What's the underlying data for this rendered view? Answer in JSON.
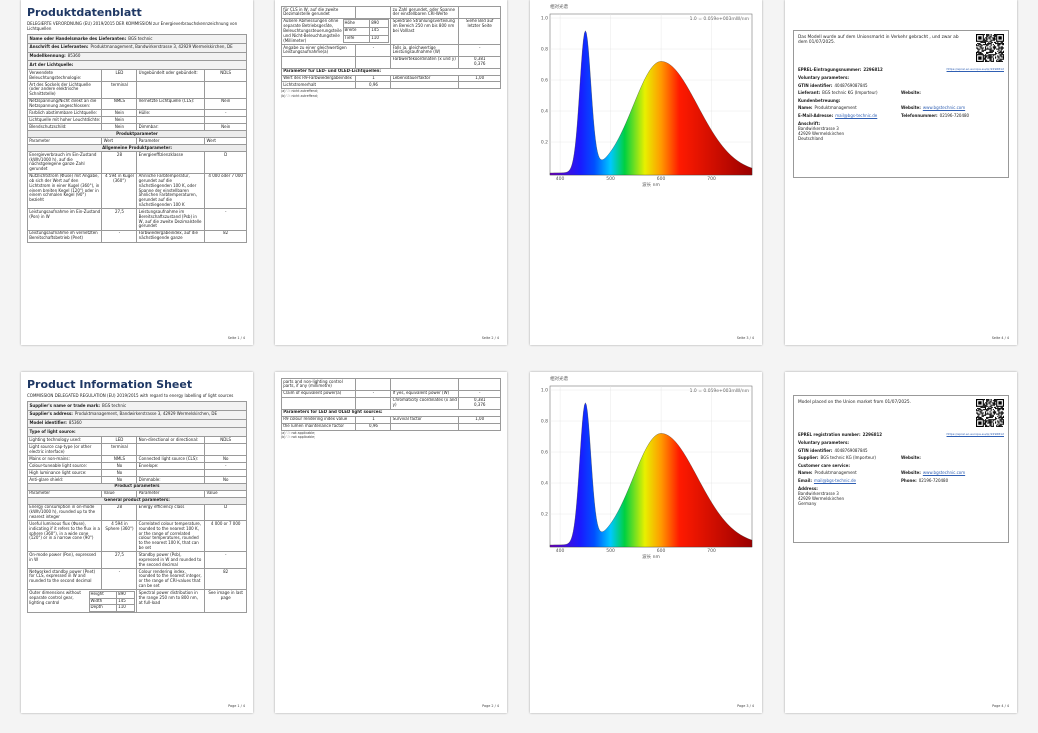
{
  "pages": [
    {
      "kind": "sheet",
      "title": "Produktdatenblatt",
      "subtitle": "DELEGIERTE VERORDNUNG (EU) 2019/2015 DER KOMMISSION zur Energieverbrauchskennzeichnung von Lichtquellen",
      "blocks": [
        {
          "label": "Name oder Handelsmarke des Lieferanten:",
          "value": "BGS technic"
        },
        {
          "label": "Anschrift des Lieferanten:",
          "value": "Produktmanagement, Bandwirkerstrasse 3, 42929 Wermelskirchen, DE"
        },
        {
          "label": "Modellkennung:",
          "value": "85360"
        },
        {
          "label": "Art der Lichtquelle:"
        },
        {
          "cells": [
            "Verwendete Beleuchtungstechnologie:",
            "LED",
            "Ungebündelt oder gebündelt:",
            "NDLS"
          ]
        },
        {
          "cells": [
            "Art des Sockels der Lichtquelle (oder andere elektrische Schnittstelle)",
            "terminal",
            null,
            null
          ]
        },
        {
          "cells": [
            "Netzspannung/Nicht direkt an die Netzspannung angeschlossen:",
            "NMLS",
            "Vernetzte Lichtquelle (CLS):",
            "Nein"
          ]
        },
        {
          "cells": [
            "Farblich abstimmbare Lichtquelle:",
            "Nein",
            "Hülle:",
            "-"
          ]
        },
        {
          "cells": [
            "Lichtquelle mit hoher Leuchtdichte:",
            "Nein",
            null,
            null
          ]
        },
        {
          "cells": [
            "Blendschutzschild:",
            "Nein",
            "Dimmbar:",
            "Nein"
          ]
        },
        {
          "section": "Produktparameter"
        },
        {
          "header": [
            "Parameter",
            "Wert",
            "Parameter",
            "Wert"
          ]
        },
        {
          "section": "Allgemeine Produktparameter:"
        },
        {
          "cells": [
            "Energieverbrauch im Ein-Zustand (kWh/1000 h), auf die nächstgelegene ganze Zahl gerundet",
            "28",
            "Energieeffizienzklasse",
            "D"
          ]
        },
        {
          "cells": [
            "Nutzlichtstrom (Φuse) mit Angabe, ob sich der Wert auf den Lichtstrom in einer Kugel (360°), in einem breiten Kegel (120°) oder in einem schmalen Kegel (90°) bezieht",
            "4 594 in Kugel (360°)",
            "Ähnliche Farbtemperatur, gerundet auf die nächstliegenden 100 K, oder Spanne der einstellbaren ähnlichen Farbtemperaturen, gerundet auf die nächstliegenden 100 K",
            "4 000 oder 7 000"
          ]
        },
        {
          "cells": [
            "Leistungsaufnahme im Ein-Zustand (Pon) in W",
            "27,5",
            "Leistungsaufnahme im Bereitschaftszustand (Psb) in W, auf die zweite Dezimalstelle gerundet",
            "-"
          ]
        },
        {
          "cells": [
            "Leistungsaufnahme im vernetzten Bereitschaftsbetrieb (Pnet)",
            "-",
            "Farbwiedergabeindex, auf die nächstliegende ganze",
            "82"
          ]
        }
      ],
      "footer": "Seite 1 / 4"
    },
    {
      "kind": "sheet",
      "blocks": [
        {
          "cells": [
            "für CLS in W, auf die zweite Dezimalstelle gerundet",
            null,
            "zu Zahl gerundet, oder Spanne der einstellbaren CRI-Werte",
            null
          ]
        },
        {
          "label": "Äußere Abmessungen ohne separate Betriebsgeräte, Beleuchtungssteuerungsteile und Nicht-Beleuchtungsteile (Millimeter)",
          "dims": [
            {
              "name": "Höhe",
              "value": "890"
            },
            {
              "name": "Breite",
              "value": "145"
            },
            {
              "name": "Tiefe",
              "value": "110"
            }
          ],
          "cells": [
            "Spektrale Strahlungsverteilung im Bereich 250 nm bis 800 nm bei Volllast",
            "Siehe Bild auf letzter Seite"
          ]
        },
        {
          "cells": [
            "Angabe zu einer gleichwertigen Leistungsaufnahme(a)",
            "-",
            "Falls ja, gleichwertige Leistungsaufnahme (W)",
            "-"
          ]
        },
        {
          "cells": [
            null,
            null,
            "Farbwertekoordinaten (x und y)",
            "0,381\n0,376"
          ]
        },
        {
          "subsection": "Parameter für LED- und OLED-Lichtquellen:"
        },
        {
          "cells": [
            "Wert des R9-Farbwiedergabeindex",
            "1",
            "Lebensdauerfaktor",
            "1,00"
          ]
        },
        {
          "cells": [
            "Lichtstromerhalt",
            "0,96",
            null,
            null
          ]
        }
      ],
      "footnotes": [
        "(a) '-': nicht zutreffend;",
        "(b) '-': nicht zutreffend;"
      ],
      "footer": "Seite 2 / 4"
    },
    {
      "kind": "spectrum",
      "spectrum": {
        "caption": "相对光谱",
        "scale": "1.0 = 0.059e+003mW/nm",
        "yticks": [
          "1.0",
          "0.8",
          "0.6",
          "0.4",
          "0.2"
        ],
        "xticks": [
          "400",
          "500",
          "600",
          "700"
        ],
        "xlabel": "波长 nm"
      },
      "footer": "Seite 3 / 4"
    },
    {
      "kind": "info",
      "intro": "Das Modell wurde auf dem Unionsmarkt in Verkehr gebracht , und zwar ab dem 01/07/2025.",
      "eprel": {
        "label": "EPREL-Eintragungsnummer:",
        "value": "2296812",
        "link": "https://eprel.ec.europa.eu/qr/2296812"
      },
      "lines": [
        {
          "label": "Voluntary parameters:"
        },
        {
          "label": "GTIN identifier:",
          "value": "4048769087845"
        },
        {
          "label": "Lieferant:",
          "value": "BGS technic KG (Importeur)",
          "right": {
            "label": "Website:"
          }
        },
        {
          "label": "Kundenbetreuung:"
        },
        {
          "label": "Name:",
          "value": "Produktmanagement",
          "right": {
            "label": "Website:",
            "value": "www.bgstechnic.com"
          }
        },
        {
          "label": "E-Mail-Adresse:",
          "value": "mail@bgs-technic.de",
          "right": {
            "label": "Telefonnummer:",
            "value": "02196-720480"
          }
        }
      ],
      "address": {
        "label": "Anschrift:",
        "lines": [
          "Bandwirkerstrasse 3",
          "42929 Wermelskirchen",
          "Deutschland"
        ]
      },
      "footer": "Seite 4 / 4"
    },
    {
      "kind": "sheet",
      "title": "Product Information Sheet",
      "subtitle": "COMMISSION DELEGATED REGULATION (EU) 2019/2015 with regard to energy labelling of light sources",
      "blocks": [
        {
          "label": "Supplier's name or trade mark:",
          "value": "BGS technic"
        },
        {
          "label": "Supplier's address:",
          "value": "Produktmanagement, Bandwirkerstrasse 3, 42929 Wermelskirchen, DE"
        },
        {
          "label": "Model identifier:",
          "value": "85360"
        },
        {
          "label": "Type of light source:"
        },
        {
          "cells": [
            "Lighting technology used:",
            "LED",
            "Non-directional or directional:",
            "NDLS"
          ]
        },
        {
          "cells": [
            "Light source cap-type (or other electric interface)",
            "terminal",
            null,
            null
          ]
        },
        {
          "cells": [
            "Mains or non-mains:",
            "NMLS",
            "Connected light source (CLS):",
            "No"
          ]
        },
        {
          "cells": [
            "Colour-tuneable light source:",
            "No",
            "Envelope:",
            "-"
          ]
        },
        {
          "cells": [
            "High luminance light source:",
            "No",
            null,
            null
          ]
        },
        {
          "cells": [
            "Anti-glare shield:",
            "No",
            "Dimmable:",
            "No"
          ]
        },
        {
          "section": "Product parameters"
        },
        {
          "header": [
            "Parameter",
            "Value",
            "Parameter",
            "Value"
          ]
        },
        {
          "section": "General product parameters:"
        },
        {
          "cells": [
            "Energy consumption in on-mode (kWh/1000 h), rounded up to the nearest integer",
            "28",
            "Energy efficiency class",
            "D"
          ]
        },
        {
          "cells": [
            "Useful luminous flux (Φuse), indicating if it refers to the flux in a sphere (360°), in a wide cone (120°) or in a narrow cone (90°)",
            "4 594 in Sphere (360°)",
            "Correlated colour temperature, rounded to the nearest 100 K, or the range of correlated colour temperatures, rounded to the nearest 100 K, that can be set",
            "4 000 or 7 000"
          ]
        },
        {
          "cells": [
            "On-mode power (Pon), expressed in W",
            "27,5",
            "Standby power (Psb), expressed in W and rounded to the second decimal",
            "-"
          ]
        },
        {
          "cells": [
            "Networked standby power (Pnet) for CLS, expressed in W and rounded to the second decimal",
            "-",
            "Colour rendering index, rounded to the nearest integer, or the range of CRI-values that can be set",
            "82"
          ]
        },
        {
          "label": "Outer dimensions without separate control gear, lighting control",
          "dims": [
            {
              "name": "Height",
              "value": "890"
            },
            {
              "name": "Width",
              "value": "145"
            },
            {
              "name": "Depth",
              "value": "110"
            }
          ],
          "cells": [
            "Spectral power distribution in the range 250 nm to 800 nm, at full-load",
            "See image in last page"
          ]
        }
      ],
      "footer": "Page 1 / 4"
    },
    {
      "kind": "sheet",
      "blocks": [
        {
          "cells": [
            "parts and non-lighting control parts, if any (millimetre)",
            null,
            null,
            null
          ]
        },
        {
          "cells": [
            "Claim of equivalent power(a)",
            "-",
            "If yes, equivalent power (W)",
            "-"
          ]
        },
        {
          "cells": [
            null,
            null,
            "Chromaticity coordinates (x and y)",
            "0,381\n0,376"
          ]
        },
        {
          "subsection": "Parameters for LED and OLED light sources:"
        },
        {
          "cells": [
            "R9 colour rendering index value",
            "1",
            "Survival factor",
            "1,00"
          ]
        },
        {
          "cells": [
            "the lumen maintenance factor",
            "0,96",
            null,
            null
          ]
        }
      ],
      "footnotes": [
        "(a) '-': not applicable;",
        "(b) '-': not applicable;"
      ],
      "footer": "Page 2 / 4"
    },
    {
      "kind": "spectrum",
      "spectrum": {
        "caption": "相对光谱",
        "scale": "1.0 = 0.059e+003mW/nm",
        "yticks": [
          "1.0",
          "0.8",
          "0.6",
          "0.4",
          "0.2"
        ],
        "xticks": [
          "400",
          "500",
          "600",
          "700"
        ],
        "xlabel": "波长 nm"
      },
      "footer": "Page 3 / 4"
    },
    {
      "kind": "info",
      "intro": "Model placed on the Union market from 01/07/2025.",
      "eprel": {
        "label": "EPREL registration number:",
        "value": "2296812",
        "link": "https://eprel.ec.europa.eu/qr/2296812"
      },
      "lines": [
        {
          "label": "Voluntary parameters:"
        },
        {
          "label": "GTIN identifier:",
          "value": "4048769087845"
        },
        {
          "label": "Supplier:",
          "value": "BGS technic KG (Importeur)",
          "right": {
            "label": "Website:"
          }
        },
        {
          "label": "Customer care service:"
        },
        {
          "label": "Name:",
          "value": "Produktmanagement",
          "right": {
            "label": "Website:",
            "value": "www.bgstechnic.com"
          }
        },
        {
          "label": "Email:",
          "value": "mail@bgs-technic.de",
          "right": {
            "label": "Phone:",
            "value": "02196-720480"
          }
        }
      ],
      "address": {
        "label": "Address:",
        "lines": [
          "Bandwirkerstrasse 3",
          "42929 Wermelskirchen",
          "Germany"
        ]
      },
      "footer": "Page 4 / 4"
    }
  ]
}
